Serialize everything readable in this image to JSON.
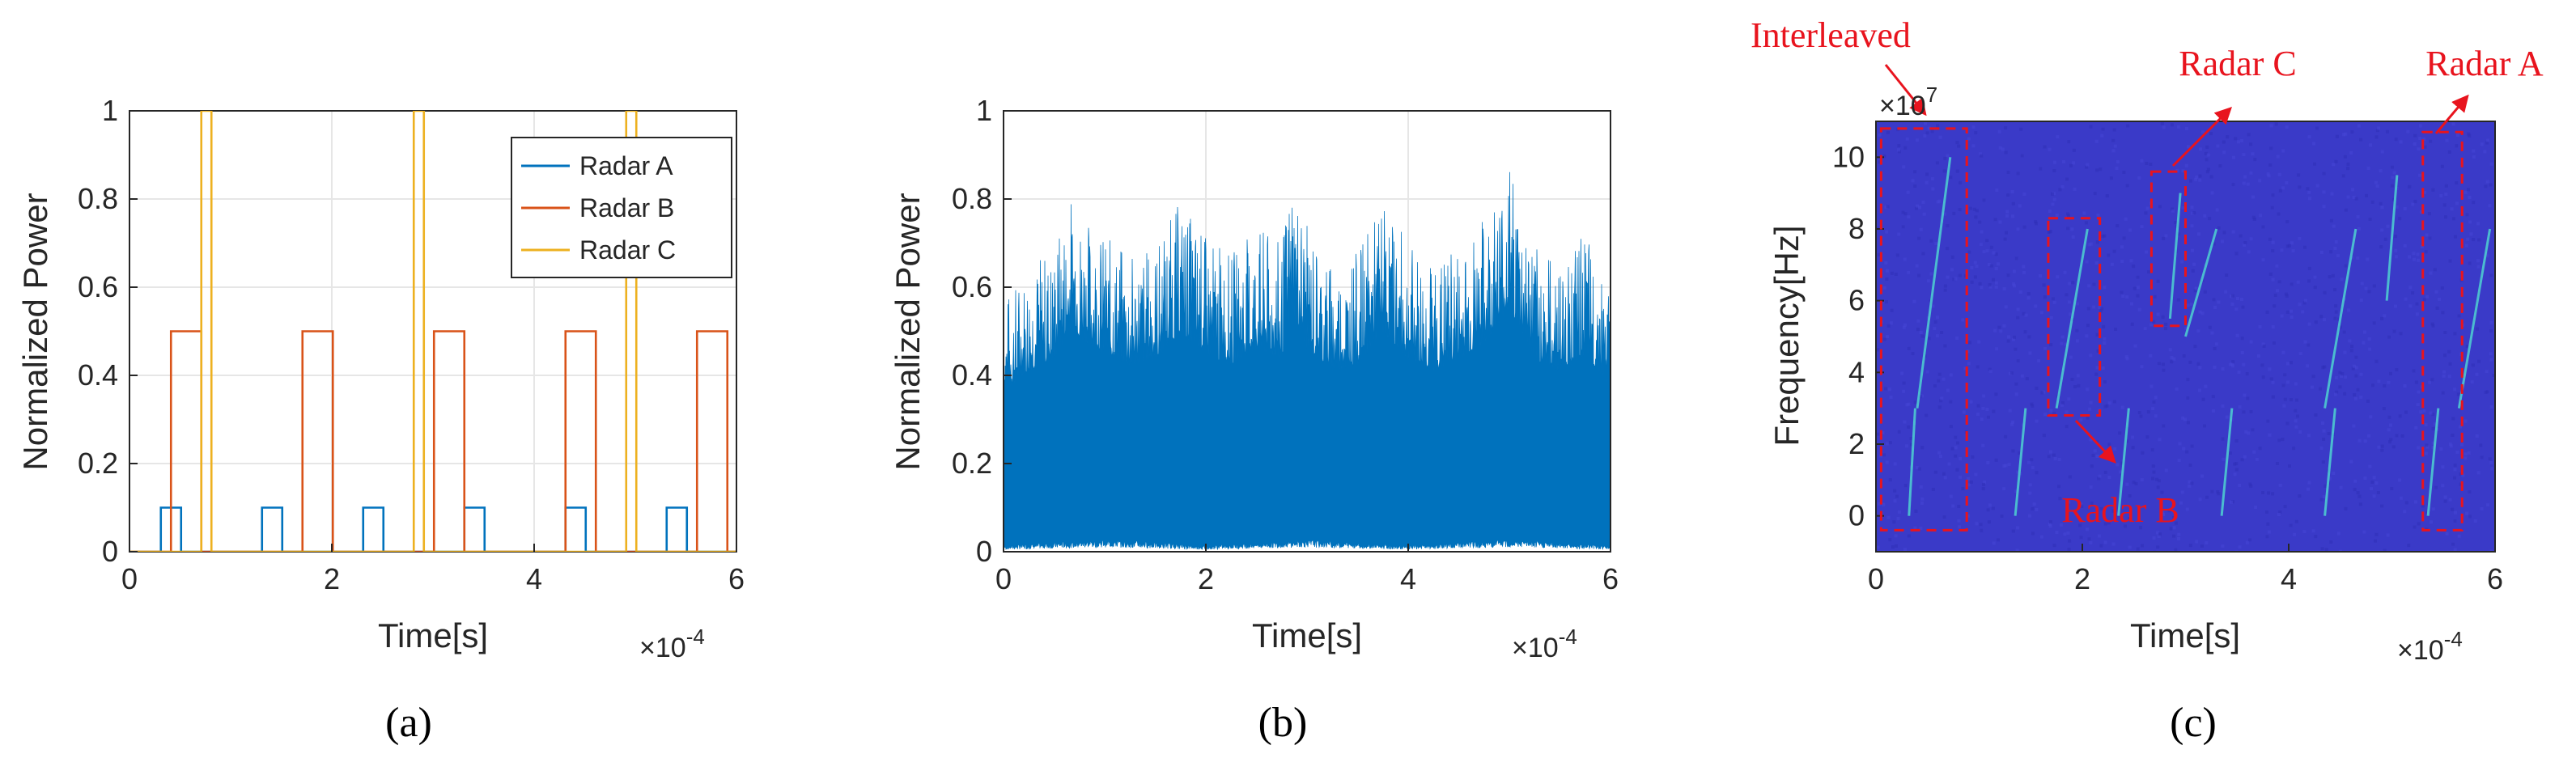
{
  "chart_data": [
    {
      "type": "line",
      "caption": "(a)",
      "xlabel": "Time[s]",
      "ylabel": "Normalized Power",
      "x_multiplier": "×10",
      "x_multiplier_exp": "-4",
      "xlim": [
        0,
        6
      ],
      "ylim": [
        0,
        1
      ],
      "xticks": [
        "0",
        "2",
        "4",
        "6"
      ],
      "yticks": [
        "0",
        "0.2",
        "0.4",
        "0.6",
        "0.8",
        "1"
      ],
      "grid": true,
      "legend_position": "top-right",
      "series": [
        {
          "name": "Radar A",
          "color": "#0072BD",
          "level": 0.1,
          "pulses": [
            [
              0.31,
              0.51
            ],
            [
              1.31,
              1.51
            ],
            [
              2.31,
              2.51
            ],
            [
              3.31,
              3.51
            ],
            [
              4.31,
              4.51
            ],
            [
              5.31,
              5.51
            ]
          ]
        },
        {
          "name": "Radar B",
          "color": "#D95319",
          "level": 0.5,
          "pulses": [
            [
              0.41,
              0.71
            ],
            [
              1.71,
              2.01
            ],
            [
              3.01,
              3.31
            ],
            [
              4.31,
              4.61
            ],
            [
              5.61,
              5.91
            ]
          ]
        },
        {
          "name": "Radar C",
          "color": "#EDB120",
          "level": 1.0,
          "pulses": [
            [
              0.71,
              0.81
            ],
            [
              2.81,
              2.91
            ],
            [
              4.91,
              5.01
            ]
          ]
        }
      ]
    },
    {
      "type": "area",
      "caption": "(b)",
      "xlabel": "Time[s]",
      "ylabel": "Normalized Power",
      "x_multiplier": "×10",
      "x_multiplier_exp": "-4",
      "xlim": [
        0,
        6
      ],
      "ylim": [
        0,
        1
      ],
      "xticks": [
        "0",
        "2",
        "4",
        "6"
      ],
      "yticks": [
        "0",
        "0.2",
        "0.4",
        "0.6",
        "0.8",
        "1"
      ],
      "grid": true,
      "color": "#0072BD",
      "upper_envelope": {
        "x": [
          0,
          0.25,
          0.5,
          0.7,
          0.75,
          1.0,
          1.25,
          1.5,
          1.75,
          2.0,
          2.25,
          2.5,
          2.75,
          2.85,
          3.0,
          3.25,
          3.5,
          3.75,
          4.0,
          4.25,
          4.5,
          4.75,
          5.0,
          5.25,
          5.5,
          5.75,
          6.0
        ],
        "y": [
          0.58,
          0.66,
          0.7,
          0.84,
          0.78,
          0.72,
          0.68,
          0.7,
          0.8,
          0.72,
          0.68,
          0.74,
          0.7,
          0.88,
          0.74,
          0.66,
          0.68,
          0.8,
          0.7,
          0.66,
          0.7,
          0.76,
          0.89,
          0.7,
          0.66,
          0.72,
          0.6
        ]
      },
      "lower_envelope": {
        "x": [
          0,
          1,
          2,
          3,
          4,
          5,
          6
        ],
        "y": [
          0.01,
          0.02,
          0.01,
          0.02,
          0.01,
          0.02,
          0.01
        ]
      }
    },
    {
      "type": "heatmap",
      "caption": "(c)",
      "xlabel": "Time[s]",
      "ylabel": "Frequency[Hz]",
      "x_multiplier": "×10",
      "x_multiplier_exp": "-4",
      "y_multiplier": "×10",
      "y_multiplier_exp": "7",
      "xlim": [
        0,
        6
      ],
      "ylim": [
        -1,
        11
      ],
      "xticks": [
        "0",
        "2",
        "4",
        "6"
      ],
      "yticks": [
        "0",
        "2",
        "4",
        "6",
        "8",
        "10"
      ],
      "background_color": "#3a3ac8",
      "trace_color": "#4fd2d2",
      "chirps": [
        {
          "x0": 0.32,
          "y0": 0.0,
          "x1": 0.38,
          "y1": 3.0
        },
        {
          "x0": 0.4,
          "y0": 3.0,
          "x1": 0.72,
          "y1": 10.0
        },
        {
          "x0": 1.35,
          "y0": 0.0,
          "x1": 1.45,
          "y1": 3.0
        },
        {
          "x0": 1.75,
          "y0": 3.0,
          "x1": 2.05,
          "y1": 8.0
        },
        {
          "x0": 2.35,
          "y0": 0.0,
          "x1": 2.45,
          "y1": 3.0
        },
        {
          "x0": 2.85,
          "y0": 5.5,
          "x1": 2.95,
          "y1": 9.0
        },
        {
          "x0": 3.0,
          "y0": 5.0,
          "x1": 3.3,
          "y1": 8.0
        },
        {
          "x0": 3.35,
          "y0": 0.0,
          "x1": 3.45,
          "y1": 3.0
        },
        {
          "x0": 4.35,
          "y0": 0.0,
          "x1": 4.45,
          "y1": 3.0
        },
        {
          "x0": 4.35,
          "y0": 3.0,
          "x1": 4.65,
          "y1": 8.0
        },
        {
          "x0": 4.95,
          "y0": 6.0,
          "x1": 5.05,
          "y1": 9.5
        },
        {
          "x0": 5.35,
          "y0": 0.0,
          "x1": 5.45,
          "y1": 3.0
        },
        {
          "x0": 5.65,
          "y0": 3.0,
          "x1": 5.95,
          "y1": 8.0
        }
      ],
      "boxes": [
        {
          "label": "Interleaved",
          "x0": 0.05,
          "x1": 0.88,
          "y0": -0.4,
          "y1": 10.8
        },
        {
          "label": "Radar B",
          "x0": 1.67,
          "x1": 2.17,
          "y0": 2.8,
          "y1": 8.3
        },
        {
          "label": "Radar C",
          "x0": 2.67,
          "x1": 3.0,
          "y0": 5.3,
          "y1": 9.6
        },
        {
          "label": "Radar A",
          "x0": 5.3,
          "x1": 5.68,
          "y0": -0.4,
          "y1": 10.7
        }
      ]
    }
  ]
}
